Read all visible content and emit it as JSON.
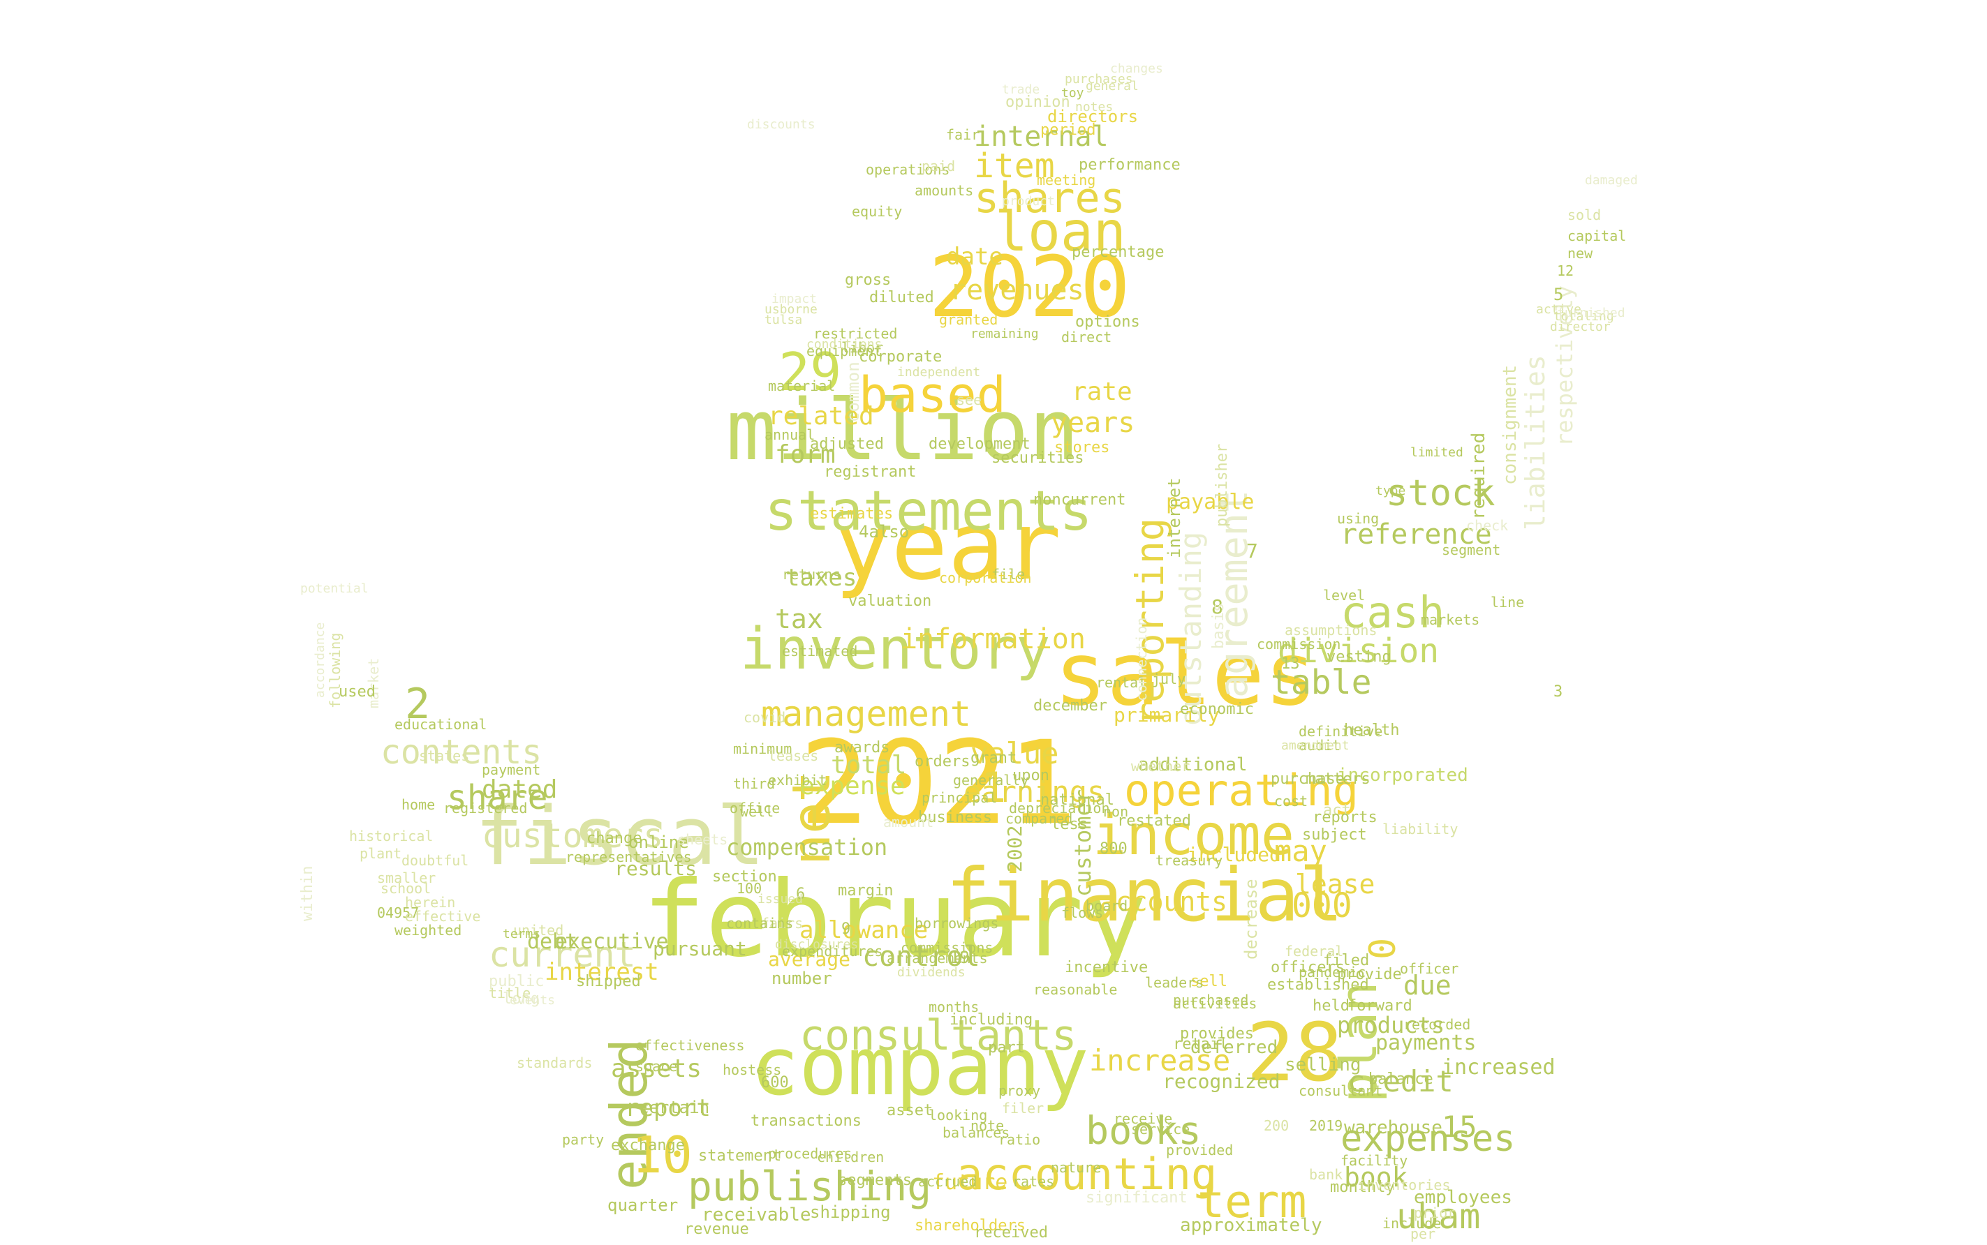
{
  "palette": [
    "#f5d33a",
    "#e8d646",
    "#cfe05a",
    "#c6d96a",
    "#b5c95e",
    "#dbe3a4",
    "#e9edcd"
  ],
  "words": [
    "february",
    "2021",
    "sales",
    "year",
    "million",
    "2020",
    "fiscal",
    "financial",
    "company",
    "28",
    "inventory",
    "statements",
    "income",
    "loan",
    "consultants",
    "accounting",
    "operating",
    "based",
    "shares",
    "cash",
    "stock",
    "net",
    "term",
    "ended",
    "publishing",
    "books",
    "management",
    "expenses",
    "customers",
    "plan",
    "current",
    "share",
    "contents",
    "division",
    "table",
    "information",
    "increase",
    "credit",
    "item",
    "revenues",
    "reference",
    "earnings",
    "value",
    "reporting",
    "agreement",
    "outstanding",
    "ubam",
    "10",
    "29",
    "2",
    "000",
    "0",
    "1",
    "15",
    "lease",
    "may",
    "expense",
    "total",
    "accounts",
    "allowance",
    "compensation",
    "assets",
    "report",
    "date",
    "internal",
    "years",
    "rate",
    "related",
    "form",
    "taxes",
    "tax",
    "dated",
    "debt",
    "interest",
    "control",
    "due",
    "products",
    "payments",
    "increased",
    "book",
    "future",
    "employees",
    "quarter",
    "receivable",
    "shipping",
    "shareholders",
    "approximately",
    "liabilities",
    "respectively",
    "consignment",
    "required",
    "warehouse",
    "selling",
    "recognized",
    "deferred",
    "included",
    "incorporated",
    "act",
    "additional",
    "primarily",
    "customer",
    "results",
    "online",
    "average",
    "number",
    "executive",
    "pursuant",
    "certain",
    "exchange",
    "transactions",
    "statement",
    "directors",
    "period",
    "performance",
    "granted",
    "restricted",
    "equipment",
    "annual",
    "adjusted",
    "development",
    "securities",
    "stores",
    "file",
    "returns",
    "corporation",
    "valuation",
    "estimated",
    "awards",
    "orders",
    "business",
    "office",
    "section",
    "united",
    "public",
    "long",
    "terms",
    "herein",
    "home",
    "registered",
    "payment",
    "states",
    "market",
    "following",
    "educational",
    "payable",
    "used",
    "7",
    "8",
    "3",
    "4also",
    "13",
    "19",
    "6",
    "9",
    "100",
    "600",
    "800",
    "200",
    "2019",
    "2002",
    "5",
    "12",
    "new",
    "capital",
    "sold",
    "opinion",
    "trade",
    "fair",
    "percentage",
    "options",
    "registrant",
    "estimates",
    "common",
    "material",
    "usborne",
    "tulsa",
    "diluted",
    "corporate",
    "gross",
    "equity",
    "operations",
    "amounts",
    "meeting",
    "product",
    "noncurrent",
    "paid",
    "sell",
    "reasonable",
    "leaders",
    "activities",
    "provides",
    "retail",
    "part",
    "including",
    "months",
    "looking",
    "asset",
    "balances",
    "receive",
    "significant",
    "service",
    "provided",
    "received",
    "segments",
    "party",
    "procedures",
    "revenue",
    "shipped",
    "sheets",
    "change",
    "disclosures",
    "fairs",
    "issued",
    "effectiveness",
    "space",
    "standards",
    "changes",
    "definitive",
    "audit",
    "amendment",
    "using",
    "type",
    "limited",
    "markets",
    "check",
    "line",
    "segment",
    "level",
    "vesting",
    "assumptions",
    "health",
    "matters",
    "reports",
    "liability",
    "subject",
    "filed",
    "provide",
    "officer",
    "recorded",
    "balance",
    "monthly",
    "include",
    "per",
    "prior",
    "bank",
    "inventories",
    "forward",
    "held",
    "established",
    "federal",
    "decrease",
    "officers",
    "pandemic",
    "purchased",
    "flows",
    "board",
    "restated",
    "less",
    "non",
    "whether",
    "rental",
    "internet",
    "publisher",
    "july",
    "december",
    "well",
    "third",
    "minimum",
    "grant",
    "upon",
    "margin",
    "commissions",
    "dividends",
    "principal",
    "compared",
    "incentive",
    "purchase",
    "cost",
    "depreciation",
    "treasury",
    "national",
    "basis",
    "commission",
    "connection",
    "economic",
    "generally",
    "amount",
    "exhibit",
    "leases",
    "covid",
    "libor",
    "conditions",
    "independent",
    "see",
    "remaining",
    "direct",
    "impact",
    "04957",
    "school",
    "plant",
    "historical",
    "smaller",
    "effective",
    "weighted",
    "doubtful",
    "representatives",
    "hostess",
    "accrued",
    "nature",
    "ratio",
    "rates",
    "note",
    "proxy",
    "filer",
    "title",
    "events",
    "expenditures",
    "contains",
    "children",
    "arrangements",
    "borrowings",
    "facility",
    "consultant",
    "notes",
    "purchases",
    "toy",
    "general",
    "damaged",
    "active",
    "totaling",
    "director",
    "furnished",
    "within",
    "potential",
    "accordance",
    "discounts",
    "capacity",
    "identification",
    "august",
    "years2",
    "evaluated",
    "regarding",
    "ownership",
    "costs",
    "white",
    "different",
    "caption"
  ]
}
